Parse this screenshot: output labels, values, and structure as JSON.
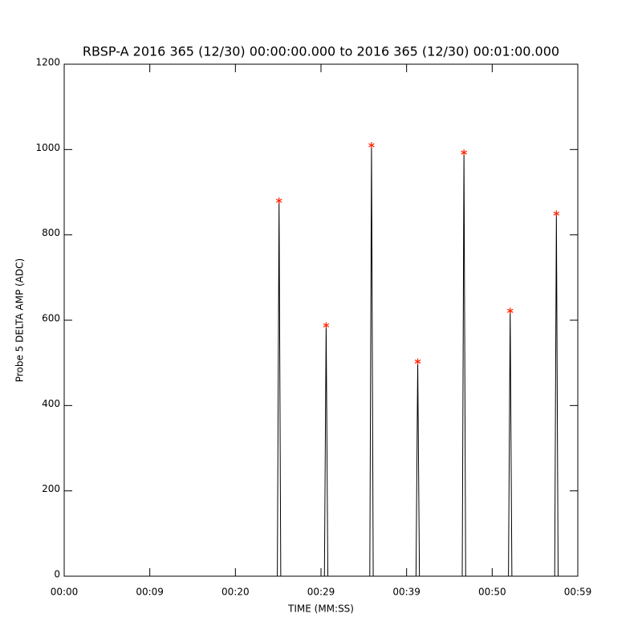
{
  "chart_data": {
    "type": "line",
    "title": "RBSP-A 2016 365 (12/30) 00:00:00.000 to 2016 365 (12/30) 00:01:00.000",
    "x_label": "TIME (MM:SS)",
    "y_label": "Probe 5 DELTA AMP (ADC)",
    "xlim": [
      0,
      60
    ],
    "xticks": [
      {
        "value": 0,
        "label": "00:00"
      },
      {
        "value": 10,
        "label": "00:09"
      },
      {
        "value": 20,
        "label": "00:20"
      },
      {
        "value": 30,
        "label": "00:29"
      },
      {
        "value": 40,
        "label": "00:39"
      },
      {
        "value": 50,
        "label": "00:50"
      },
      {
        "value": 60,
        "label": "00:59"
      }
    ],
    "ylim": [
      0,
      1200
    ],
    "yticks": [
      0,
      200,
      400,
      600,
      800,
      1000,
      1200
    ],
    "series": [
      {
        "color": "#000000",
        "marker": "none",
        "x": [
          0,
          24.9,
          25.1,
          25.3,
          30.4,
          30.6,
          30.8,
          35.7,
          35.9,
          36.1,
          41.1,
          41.3,
          41.5,
          46.5,
          46.7,
          46.9,
          51.9,
          52.1,
          52.3,
          57.3,
          57.5,
          57.7,
          60
        ],
        "values": [
          0,
          0,
          880,
          0,
          0,
          588,
          0,
          0,
          1010,
          0,
          0,
          503,
          0,
          0,
          993,
          0,
          0,
          622,
          0,
          0,
          850,
          0,
          0
        ]
      },
      {
        "color": "#ff2000",
        "marker": "star",
        "x": [
          25.1,
          30.6,
          35.9,
          41.3,
          46.7,
          52.1,
          57.5
        ],
        "values": [
          880,
          588,
          1010,
          503,
          993,
          622,
          850
        ]
      }
    ]
  }
}
